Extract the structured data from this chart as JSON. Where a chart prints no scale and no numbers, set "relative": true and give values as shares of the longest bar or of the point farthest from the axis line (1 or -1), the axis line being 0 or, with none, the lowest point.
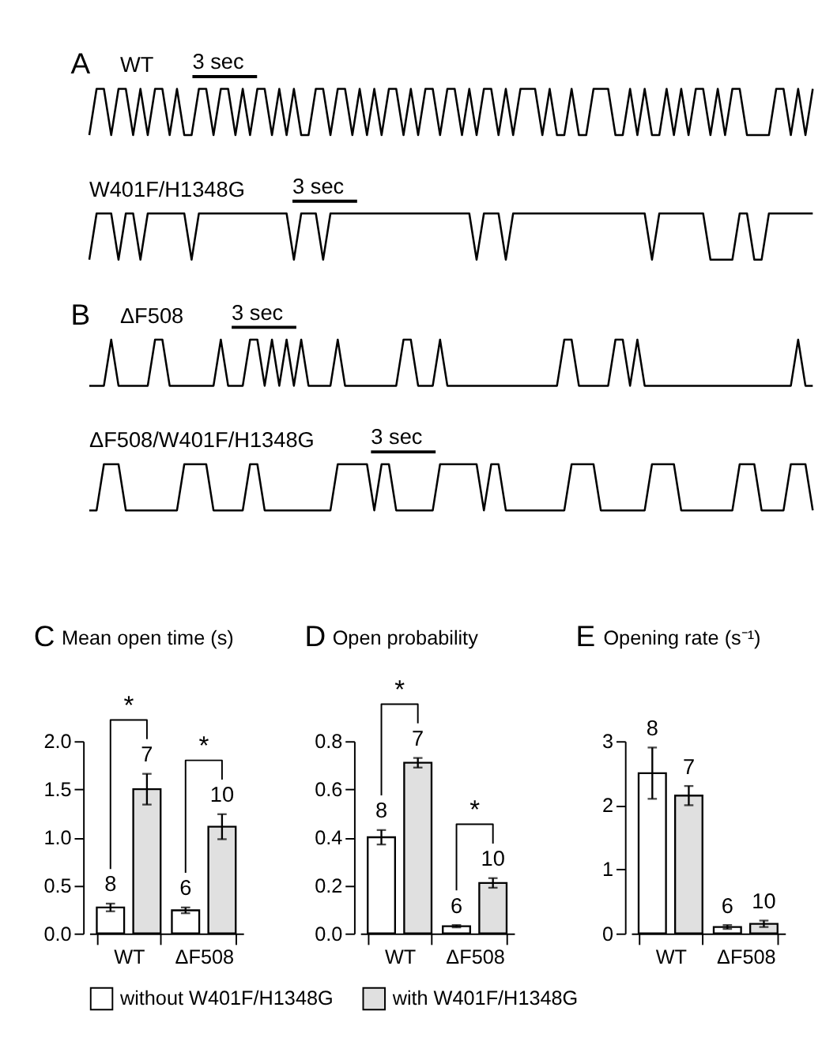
{
  "chart_data": [
    {
      "type": "line",
      "relative": true,
      "title": "WT",
      "annotations": [
        "A",
        "3 sec"
      ],
      "categories": [
        null,
        null,
        null,
        null,
        null,
        null,
        null,
        null,
        null,
        null,
        null,
        null,
        null,
        null,
        null,
        null,
        null,
        null,
        null,
        null,
        null,
        null,
        null,
        null,
        null,
        null,
        null,
        null,
        null,
        null,
        null,
        null,
        null,
        null,
        null,
        null,
        null,
        null,
        null,
        null,
        null,
        null,
        null,
        null,
        null,
        null,
        null,
        null,
        null,
        null,
        null,
        null,
        null,
        null,
        null,
        null,
        null,
        null,
        null,
        null,
        null,
        null,
        null,
        null,
        null,
        null,
        null,
        null,
        null,
        null,
        null,
        null,
        null,
        null,
        null,
        null,
        null,
        null,
        null,
        null,
        null,
        null,
        null,
        null,
        null,
        null,
        null,
        null,
        null,
        null,
        null,
        null,
        null,
        null,
        null,
        null,
        null,
        null,
        null,
        null
      ],
      "series": [
        {
          "color": "#000000",
          "values": [
            0,
            1,
            1,
            0,
            1,
            1,
            0,
            1,
            0,
            1,
            1,
            0,
            1,
            0,
            0,
            1,
            1,
            0,
            1,
            1,
            0,
            1,
            0,
            1,
            1,
            0,
            1,
            0,
            1,
            0,
            0,
            1,
            1,
            0,
            1,
            1,
            0,
            1,
            0,
            1,
            0,
            1,
            1,
            0,
            1,
            0,
            1,
            1,
            0,
            1,
            1,
            0,
            1,
            0,
            1,
            1,
            0,
            1,
            0,
            1,
            1,
            1,
            0,
            1,
            0,
            0,
            1,
            0,
            0,
            1,
            1,
            1,
            0,
            0,
            1,
            0,
            1,
            0,
            0,
            1,
            0,
            1,
            0,
            1,
            1,
            0,
            1,
            0,
            1,
            1,
            0,
            0,
            0,
            0,
            1,
            1,
            0,
            1,
            0,
            1
          ]
        }
      ]
    },
    {
      "type": "line",
      "relative": true,
      "title": "W401F/H1348G",
      "annotations": [
        "3 sec"
      ],
      "categories": [
        null,
        null,
        null,
        null,
        null,
        null,
        null,
        null,
        null,
        null,
        null,
        null,
        null,
        null,
        null,
        null,
        null,
        null,
        null,
        null,
        null,
        null,
        null,
        null,
        null,
        null,
        null,
        null,
        null,
        null,
        null,
        null,
        null,
        null,
        null,
        null,
        null,
        null,
        null,
        null,
        null,
        null,
        null,
        null,
        null,
        null,
        null,
        null,
        null,
        null,
        null,
        null,
        null,
        null,
        null,
        null,
        null,
        null,
        null,
        null,
        null,
        null,
        null,
        null,
        null,
        null,
        null,
        null,
        null,
        null,
        null,
        null,
        null,
        null,
        null,
        null,
        null,
        null,
        null,
        null,
        null,
        null,
        null,
        null,
        null,
        null,
        null,
        null,
        null,
        null,
        null,
        null,
        null,
        null,
        null,
        null,
        null,
        null,
        null,
        null
      ],
      "series": [
        {
          "color": "#000000",
          "values": [
            0,
            1,
            1,
            1,
            0,
            1,
            1,
            0,
            1,
            1,
            1,
            1,
            1,
            1,
            0,
            1,
            1,
            1,
            1,
            1,
            1,
            1,
            1,
            1,
            1,
            1,
            1,
            1,
            0,
            1,
            1,
            1,
            0,
            1,
            1,
            1,
            1,
            1,
            1,
            1,
            1,
            1,
            1,
            1,
            1,
            1,
            1,
            1,
            1,
            1,
            1,
            1,
            1,
            0,
            1,
            1,
            1,
            0,
            1,
            1,
            1,
            1,
            1,
            1,
            1,
            1,
            1,
            1,
            1,
            1,
            1,
            1,
            1,
            1,
            1,
            1,
            1,
            0,
            1,
            1,
            1,
            1,
            1,
            1,
            1,
            0,
            0,
            0,
            0,
            1,
            1,
            0,
            0,
            1,
            1,
            1,
            1,
            1,
            1,
            1
          ]
        }
      ]
    },
    {
      "type": "line",
      "relative": true,
      "title": "ΔF508",
      "annotations": [
        "B",
        "3 sec"
      ],
      "categories": [
        null,
        null,
        null,
        null,
        null,
        null,
        null,
        null,
        null,
        null,
        null,
        null,
        null,
        null,
        null,
        null,
        null,
        null,
        null,
        null,
        null,
        null,
        null,
        null,
        null,
        null,
        null,
        null,
        null,
        null,
        null,
        null,
        null,
        null,
        null,
        null,
        null,
        null,
        null,
        null,
        null,
        null,
        null,
        null,
        null,
        null,
        null,
        null,
        null,
        null,
        null,
        null,
        null,
        null,
        null,
        null,
        null,
        null,
        null,
        null,
        null,
        null,
        null,
        null,
        null,
        null,
        null,
        null,
        null,
        null,
        null,
        null,
        null,
        null,
        null,
        null,
        null,
        null,
        null,
        null,
        null,
        null,
        null,
        null,
        null,
        null,
        null,
        null,
        null,
        null,
        null,
        null,
        null,
        null,
        null,
        null,
        null,
        null,
        null,
        null
      ],
      "series": [
        {
          "color": "#000000",
          "values": [
            0,
            0,
            0,
            1,
            0,
            0,
            0,
            0,
            0,
            1,
            1,
            0,
            0,
            0,
            0,
            0,
            0,
            0,
            1,
            0,
            0,
            0,
            1,
            1,
            0,
            1,
            0,
            1,
            0,
            1,
            0,
            0,
            0,
            0,
            1,
            0,
            0,
            0,
            0,
            0,
            0,
            0,
            0,
            1,
            1,
            0,
            0,
            0,
            1,
            0,
            0,
            0,
            0,
            0,
            0,
            0,
            0,
            0,
            0,
            0,
            0,
            0,
            0,
            0,
            0,
            1,
            1,
            0,
            0,
            0,
            0,
            0,
            1,
            1,
            0,
            1,
            0,
            0,
            0,
            0,
            0,
            0,
            0,
            0,
            0,
            0,
            0,
            0,
            0,
            0,
            0,
            0,
            0,
            0,
            0,
            0,
            0,
            1,
            0,
            0
          ]
        }
      ]
    },
    {
      "type": "line",
      "relative": true,
      "title": "ΔF508/W401F/H1348G",
      "annotations": [
        "3 sec"
      ],
      "categories": [
        null,
        null,
        null,
        null,
        null,
        null,
        null,
        null,
        null,
        null,
        null,
        null,
        null,
        null,
        null,
        null,
        null,
        null,
        null,
        null,
        null,
        null,
        null,
        null,
        null,
        null,
        null,
        null,
        null,
        null,
        null,
        null,
        null,
        null,
        null,
        null,
        null,
        null,
        null,
        null,
        null,
        null,
        null,
        null,
        null,
        null,
        null,
        null,
        null,
        null,
        null,
        null,
        null,
        null,
        null,
        null,
        null,
        null,
        null,
        null,
        null,
        null,
        null,
        null,
        null,
        null,
        null,
        null,
        null,
        null,
        null,
        null,
        null,
        null,
        null,
        null,
        null,
        null,
        null,
        null,
        null,
        null,
        null,
        null,
        null,
        null,
        null,
        null,
        null,
        null,
        null,
        null,
        null,
        null,
        null,
        null,
        null,
        null,
        null,
        null
      ],
      "series": [
        {
          "color": "#000000",
          "values": [
            0,
            0,
            1,
            1,
            1,
            0,
            0,
            0,
            0,
            0,
            0,
            0,
            0,
            1,
            1,
            1,
            1,
            0,
            0,
            0,
            0,
            0,
            1,
            1,
            0,
            0,
            0,
            0,
            0,
            0,
            0,
            0,
            0,
            0,
            1,
            1,
            1,
            1,
            1,
            0,
            1,
            1,
            0,
            0,
            0,
            0,
            0,
            0,
            1,
            1,
            1,
            1,
            1,
            1,
            0,
            1,
            1,
            0,
            0,
            0,
            0,
            0,
            0,
            0,
            0,
            0,
            1,
            1,
            1,
            1,
            0,
            0,
            0,
            0,
            0,
            0,
            0,
            1,
            1,
            1,
            1,
            0,
            0,
            0,
            0,
            0,
            0,
            0,
            0,
            1,
            1,
            1,
            0,
            0,
            0,
            0,
            1,
            1,
            1,
            0
          ]
        }
      ]
    },
    {
      "type": "bar",
      "title": "Mean open time (s)",
      "annotations": [
        "C",
        "8",
        "6",
        "7",
        "10",
        "*",
        "*"
      ],
      "categories": [
        "WT",
        "ΔF508"
      ],
      "ylim": [
        0,
        2.0
      ],
      "yticks": [
        {
          "value": 0,
          "label": "0.0"
        },
        {
          "value": 0.5,
          "label": "0.5"
        },
        {
          "value": 1,
          "label": "1.0"
        },
        {
          "value": 1.5,
          "label": "1.5"
        },
        {
          "value": 2,
          "label": "2.0"
        }
      ],
      "legend": "bottom",
      "series": [
        {
          "name": "without W401F/H1348G",
          "color": "#ffffff",
          "values": [
            0.27,
            0.24
          ],
          "errors": [
            0.04,
            0.03
          ]
        },
        {
          "name": "with W401F/H1348G",
          "color": "#e0e0e0",
          "values": [
            1.5,
            1.11
          ],
          "errors": [
            0.16,
            0.13
          ]
        }
      ]
    },
    {
      "type": "bar",
      "title": "Open probability",
      "annotations": [
        "D",
        "8",
        "6",
        "7",
        "10",
        "*",
        "*"
      ],
      "categories": [
        "WT",
        "ΔF508"
      ],
      "ylim": [
        0,
        0.8
      ],
      "yticks": [
        {
          "value": 0,
          "label": "0.0"
        },
        0.2,
        0.4,
        0.6,
        0.8
      ],
      "legend": "bottom",
      "series": [
        {
          "name": "without W401F/H1348G",
          "color": "#ffffff",
          "values": [
            0.4,
            0.03
          ],
          "errors": [
            0.03,
            0.005
          ]
        },
        {
          "name": "with W401F/H1348G",
          "color": "#e0e0e0",
          "values": [
            0.71,
            0.21
          ],
          "errors": [
            0.02,
            0.02
          ]
        }
      ]
    },
    {
      "type": "bar",
      "title": "Opening rate (s⁻¹)",
      "annotations": [
        "E",
        "8",
        "6",
        "7",
        "10"
      ],
      "categories": [
        "WT",
        "ΔF508"
      ],
      "ylim": [
        0,
        3
      ],
      "yticks": [
        0,
        1,
        2,
        3
      ],
      "legend": "bottom",
      "series": [
        {
          "name": "without W401F/H1348G",
          "color": "#ffffff",
          "values": [
            2.5,
            0.1
          ],
          "errors": [
            0.4,
            0.03
          ]
        },
        {
          "name": "with W401F/H1348G",
          "color": "#e0e0e0",
          "values": [
            2.15,
            0.15
          ],
          "errors": [
            0.15,
            0.05
          ]
        }
      ]
    }
  ]
}
